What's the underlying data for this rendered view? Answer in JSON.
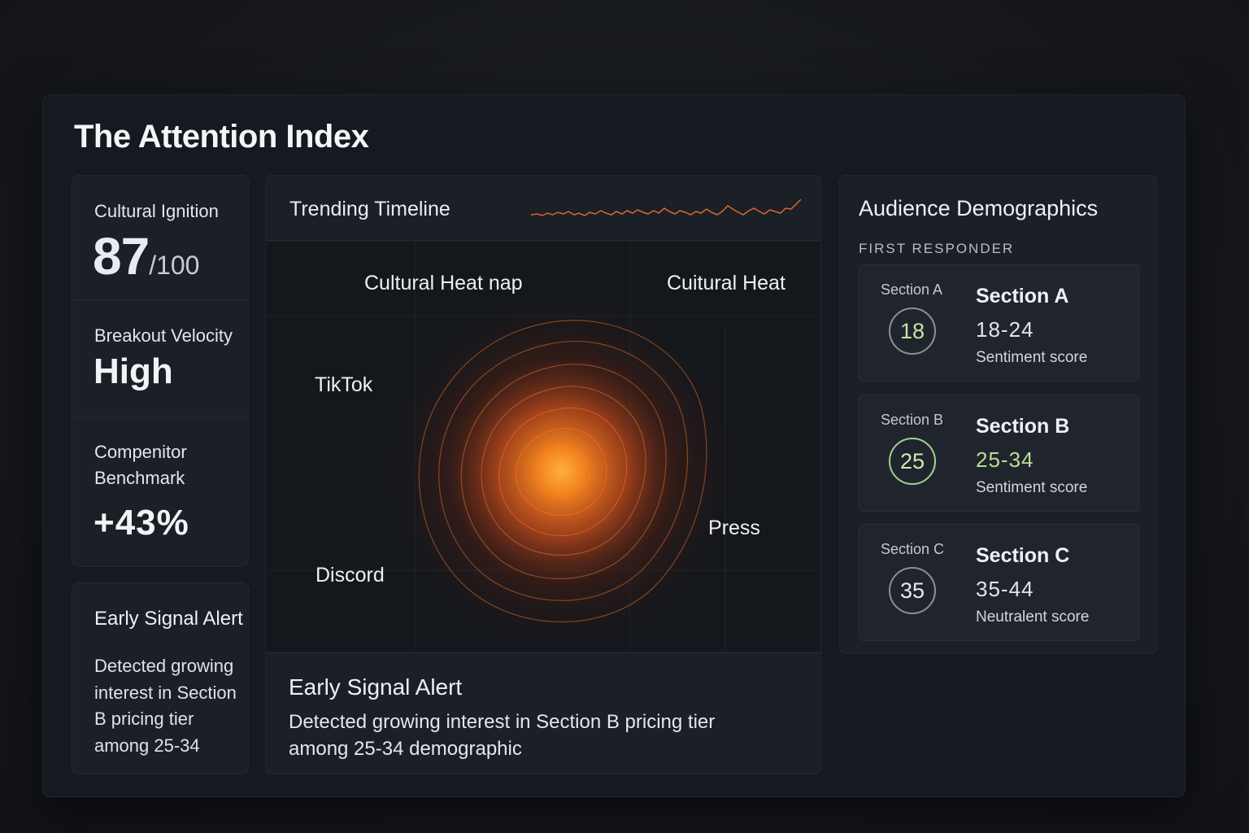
{
  "app": {
    "title": "The Attention Index"
  },
  "metrics": {
    "cultural_ignition": {
      "label": "Cultural Ignition",
      "score": "87",
      "out_of": "/100"
    },
    "breakout_velocity": {
      "label": "Breakout Velocity",
      "value": "High"
    },
    "competitor_benchmark": {
      "label_line1": "Compenitor",
      "label_line2": "Benchmark",
      "value": "+43%"
    }
  },
  "alert_left": {
    "title": "Early Signal Alert",
    "line1": "Detected growing",
    "line2": "interest in Section",
    "line3": "B pricing tier",
    "line4": "among 25-34"
  },
  "timeline": {
    "title": "Trending Timeline",
    "sparkline_color": "#e0662a"
  },
  "heatmap": {
    "label_left": "Cultural Heat nap",
    "label_right": "Cuitural Heat",
    "channels": {
      "tiktok": "TikTok",
      "discord": "Discord",
      "press": "Press"
    },
    "heat_color": "#ff7a1a"
  },
  "alert_center": {
    "title": "Early Signal Alert",
    "line1": "Detected growing interest in Section B pricing tier",
    "line2": "among 25-34 demographic"
  },
  "demographics": {
    "title": "Audience Demographics",
    "subtitle": "FIRST RESPONDER",
    "sections": [
      {
        "tag": "Section A",
        "number": "18",
        "name": "Section A",
        "range": "18-24",
        "score_label": "Sentiment score"
      },
      {
        "tag": "Section B",
        "number": "25",
        "name": "Section B",
        "range": "25-34",
        "score_label": "Sentiment score"
      },
      {
        "tag": "Section C",
        "number": "35",
        "name": "Section C",
        "range": "35-44",
        "score_label": "Neutralent score"
      }
    ],
    "accent_green": "#9fd38a"
  }
}
